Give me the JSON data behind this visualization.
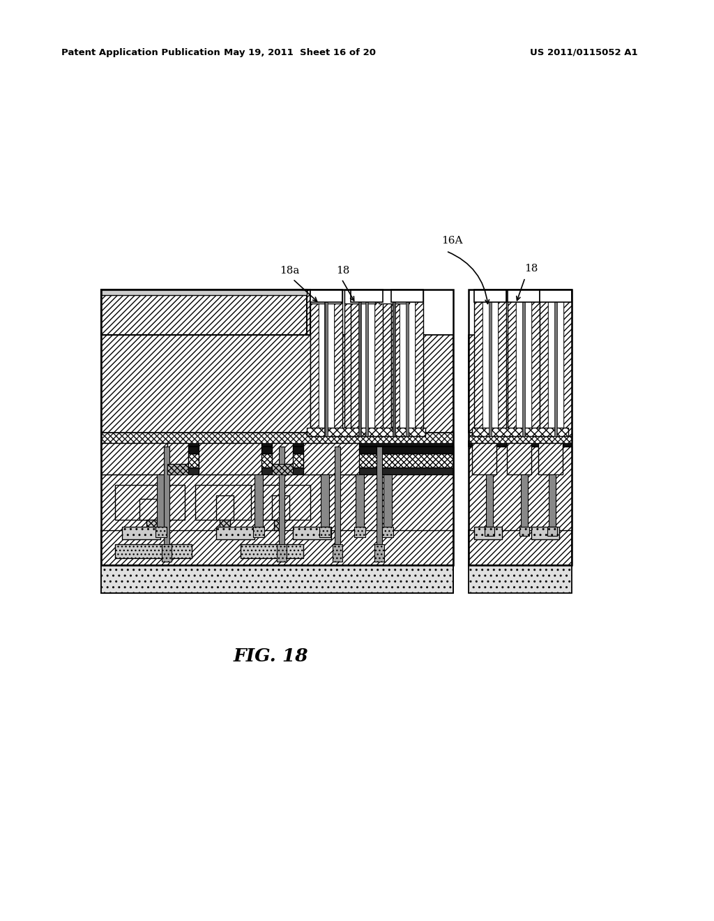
{
  "bg_color": "#ffffff",
  "header_text_left": "Patent Application Publication",
  "header_text_mid": "May 19, 2011  Sheet 16 of 20",
  "header_text_right": "US 2011/0115052 A1",
  "fig_label": "FIG. 18",
  "label_16A": "16A",
  "label_18a": "18a",
  "label_18_left": "18",
  "label_18_right": "18"
}
